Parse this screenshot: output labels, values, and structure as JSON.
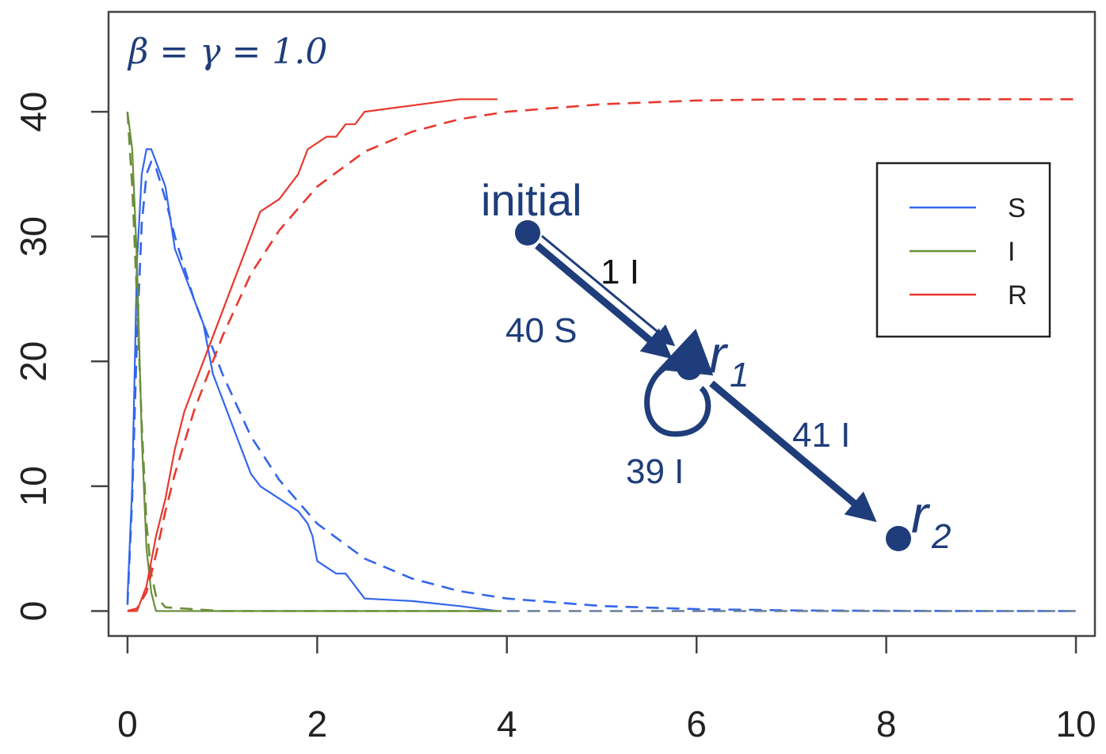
{
  "chart_data": {
    "type": "line",
    "annotation_parameter": "β = γ = 1.0",
    "xlim": [
      -0.2,
      10.2
    ],
    "ylim": [
      -2,
      48
    ],
    "xticks": [
      0,
      2,
      4,
      6,
      8,
      10
    ],
    "yticks": [
      0,
      10,
      20,
      30,
      40
    ],
    "xtick_labels": [
      "0",
      "2",
      "4",
      "6",
      "8",
      "10"
    ],
    "ytick_labels": [
      "0",
      "10",
      "20",
      "30",
      "40"
    ],
    "legend": {
      "placement": "right",
      "entries": [
        {
          "label": "S",
          "color": "#3366ee"
        },
        {
          "label": "I",
          "color": "#6b8e3a"
        },
        {
          "label": "R",
          "color": "#e8392e"
        }
      ]
    },
    "series": [
      {
        "key": "S",
        "style": "solid",
        "color": "#3366ee",
        "x": [
          0,
          0.05,
          0.1,
          0.15,
          0.2,
          0.25,
          0.3,
          0.4,
          0.5,
          0.6,
          0.7,
          0.8,
          0.9,
          1.0,
          1.1,
          1.2,
          1.3,
          1.4,
          1.6,
          1.8,
          1.9,
          1.95,
          2.0,
          2.2,
          2.3,
          2.4,
          2.5,
          3.0,
          3.5,
          3.9
        ],
        "y": [
          1,
          10,
          28,
          35,
          37,
          37,
          36,
          34,
          29,
          27,
          25,
          23,
          19,
          17,
          15,
          13,
          11,
          10,
          9,
          8,
          7,
          6,
          4,
          3,
          3,
          2,
          1,
          0.8,
          0.4,
          0
        ]
      },
      {
        "key": "S-expected",
        "style": "dashed",
        "color": "#3366ee",
        "x": [
          0,
          0.05,
          0.1,
          0.15,
          0.2,
          0.25,
          0.3,
          0.4,
          0.5,
          0.7,
          1.0,
          1.3,
          1.6,
          2.0,
          2.5,
          3.0,
          3.5,
          4.0,
          5.0,
          6.0,
          7.0,
          8.0,
          9.0,
          10.0
        ],
        "y": [
          0.5,
          9,
          22,
          31,
          35,
          36,
          35.5,
          33,
          30,
          25,
          19,
          14,
          10.5,
          7,
          4.2,
          2.6,
          1.6,
          1.0,
          0.4,
          0.15,
          0.05,
          0.02,
          0,
          0
        ]
      },
      {
        "key": "I",
        "style": "solid",
        "color": "#6b8e3a",
        "x": [
          0,
          0.05,
          0.1,
          0.15,
          0.2,
          0.25,
          0.3,
          1.0,
          2.0,
          3.0,
          3.9
        ],
        "y": [
          40,
          37,
          28,
          14,
          5,
          1.5,
          0,
          0,
          0,
          0,
          0
        ]
      },
      {
        "key": "I-expected",
        "style": "dashed",
        "color": "#6b8e3a",
        "x": [
          0,
          0.05,
          0.1,
          0.15,
          0.2,
          0.25,
          0.3,
          0.4,
          1.0,
          2.0,
          3.0,
          4.0
        ],
        "y": [
          40,
          34,
          25,
          15,
          7,
          3,
          1.2,
          0.3,
          0,
          0,
          0,
          0
        ]
      },
      {
        "key": "R",
        "style": "solid",
        "color": "#e8392e",
        "x": [
          0,
          0.1,
          0.15,
          0.2,
          0.25,
          0.3,
          0.4,
          0.5,
          0.6,
          0.7,
          0.8,
          0.9,
          1.0,
          1.1,
          1.2,
          1.3,
          1.4,
          1.5,
          1.6,
          1.7,
          1.8,
          1.9,
          2.0,
          2.1,
          2.2,
          2.3,
          2.4,
          2.5,
          3.0,
          3.5,
          3.9
        ],
        "y": [
          0,
          0,
          1,
          2,
          4,
          6,
          9,
          13,
          16,
          18,
          20,
          22,
          24,
          26,
          28,
          30,
          32,
          32.5,
          33,
          34,
          35,
          37,
          37.5,
          38,
          38,
          39,
          39,
          40,
          40.5,
          41,
          41
        ]
      },
      {
        "key": "R-expected",
        "style": "dashed",
        "color": "#e8392e",
        "x": [
          0,
          0.1,
          0.2,
          0.3,
          0.4,
          0.5,
          0.7,
          1.0,
          1.3,
          1.6,
          2.0,
          2.5,
          3.0,
          3.5,
          4.0,
          5.0,
          6.0,
          7.0,
          8.0,
          9.0,
          10.0
        ],
        "y": [
          0,
          0.2,
          1.5,
          4.5,
          8,
          11,
          16,
          22,
          27,
          30.5,
          34,
          36.8,
          38.4,
          39.4,
          40,
          40.6,
          40.9,
          41,
          41,
          41,
          41
        ]
      },
      {
        "key": "baseline-expected",
        "style": "dashed",
        "color": "#6a7f99",
        "x": [
          4.0,
          10.0
        ],
        "y": [
          0,
          0
        ]
      }
    ],
    "overlay_graph": {
      "nodes": [
        {
          "id": "initial",
          "label": "initial",
          "sub": ""
        },
        {
          "id": "r1",
          "label": "r",
          "sub": "1"
        },
        {
          "id": "r2",
          "label": "r",
          "sub": "2"
        }
      ],
      "edges": [
        {
          "from": "initial",
          "to": "r1",
          "label": "40 S"
        },
        {
          "from": "initial",
          "to": "r1",
          "label": "1 I"
        },
        {
          "from": "r1",
          "to": "r1",
          "label": "39 I"
        },
        {
          "from": "r1",
          "to": "r2",
          "label": "41 I"
        }
      ]
    }
  }
}
